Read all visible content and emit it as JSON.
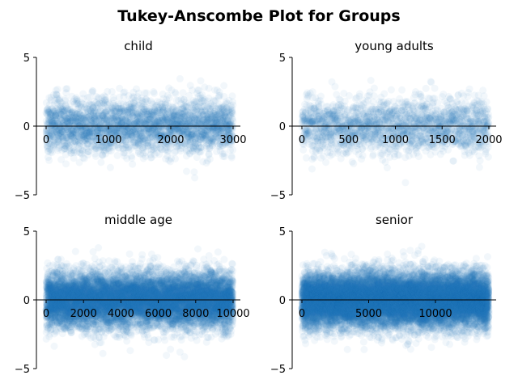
{
  "figure_title": "Tukey-Anscombe Plot for Groups",
  "colors": {
    "points": "#1f77b4",
    "axis": "#000000"
  },
  "chart_data": [
    {
      "type": "scatter",
      "title": "child",
      "n_points": 3000,
      "xlim": [
        0,
        3000
      ],
      "ylim": [
        -5,
        5
      ],
      "xticks": [
        0,
        1000,
        2000,
        3000
      ],
      "yticks": [
        -5,
        0,
        5
      ],
      "residual_sd": 1.0,
      "marker_alpha": 0.06,
      "grid": false,
      "legend": "none"
    },
    {
      "type": "scatter",
      "title": "young adults",
      "n_points": 2000,
      "xlim": [
        0,
        2000
      ],
      "ylim": [
        -5,
        5
      ],
      "xticks": [
        0,
        500,
        1000,
        1500,
        2000
      ],
      "yticks": [
        -5,
        0,
        5
      ],
      "residual_sd": 1.0,
      "marker_alpha": 0.06,
      "grid": false,
      "legend": "none"
    },
    {
      "type": "scatter",
      "title": "middle age",
      "n_points": 10000,
      "xlim": [
        0,
        10000
      ],
      "ylim": [
        -5,
        5
      ],
      "xticks": [
        0,
        2000,
        4000,
        6000,
        8000,
        10000
      ],
      "yticks": [
        -5,
        0,
        5
      ],
      "residual_sd": 1.0,
      "marker_alpha": 0.06,
      "grid": false,
      "legend": "none"
    },
    {
      "type": "scatter",
      "title": "senior",
      "n_points": 14000,
      "xlim": [
        0,
        14000
      ],
      "ylim": [
        -5,
        5
      ],
      "xticks": [
        0,
        5000,
        10000
      ],
      "yticks": [
        -5,
        0,
        5
      ],
      "residual_sd": 1.0,
      "marker_alpha": 0.06,
      "grid": false,
      "legend": "none"
    }
  ]
}
